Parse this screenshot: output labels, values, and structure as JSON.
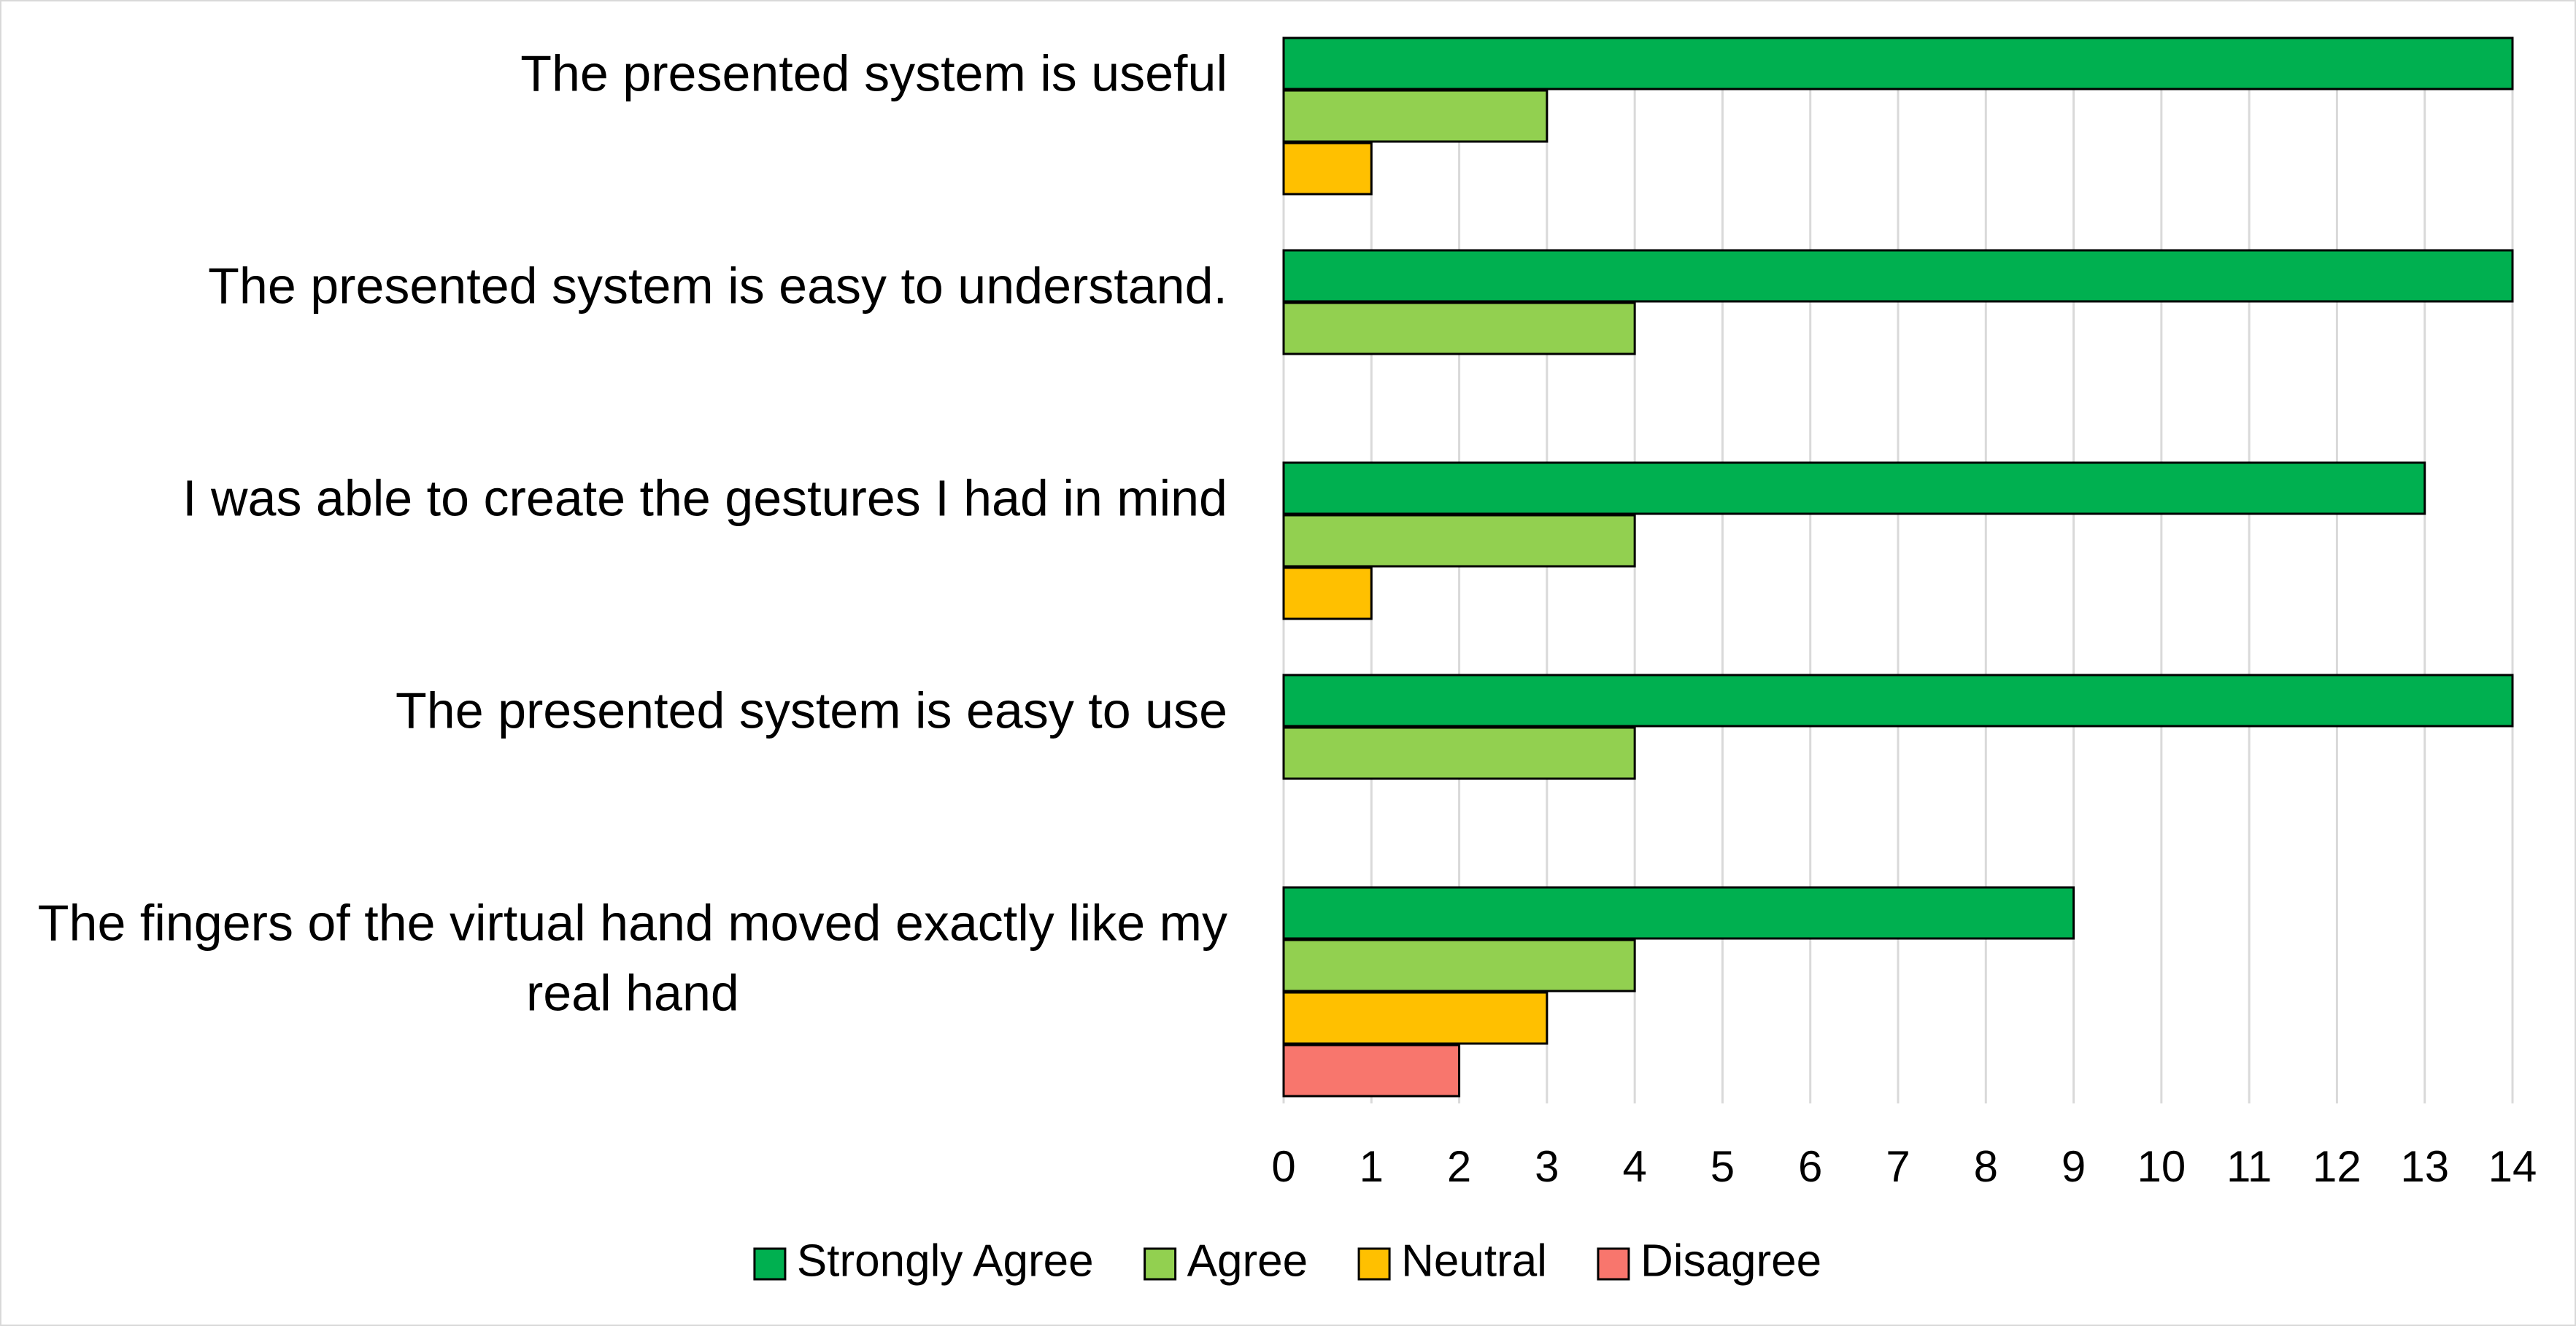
{
  "chart_data": {
    "type": "bar",
    "orientation": "horizontal",
    "categories": [
      "The presented system is useful",
      "The presented system is easy to understand.",
      "I was able to create the gestures I had in mind",
      "The presented system is easy to use",
      "The fingers of the virtual hand moved exactly like my real hand"
    ],
    "series": [
      {
        "name": "Strongly Agree",
        "color": "#00b050",
        "values": [
          14,
          14,
          13,
          14,
          9
        ]
      },
      {
        "name": "Agree",
        "color": "#92d050",
        "values": [
          3,
          4,
          4,
          4,
          4
        ]
      },
      {
        "name": "Neutral",
        "color": "#ffc000",
        "values": [
          1,
          0,
          1,
          0,
          3
        ]
      },
      {
        "name": "Disagree",
        "color": "#f8766d",
        "values": [
          0,
          0,
          0,
          0,
          2
        ]
      }
    ],
    "xticks": [
      "0",
      "1",
      "2",
      "3",
      "4",
      "5",
      "6",
      "7",
      "8",
      "9",
      "10",
      "11",
      "12",
      "13",
      "14"
    ],
    "xlim": [
      0,
      14
    ],
    "grid": true,
    "legend_position": "bottom",
    "title": "",
    "xlabel": "",
    "ylabel": ""
  }
}
